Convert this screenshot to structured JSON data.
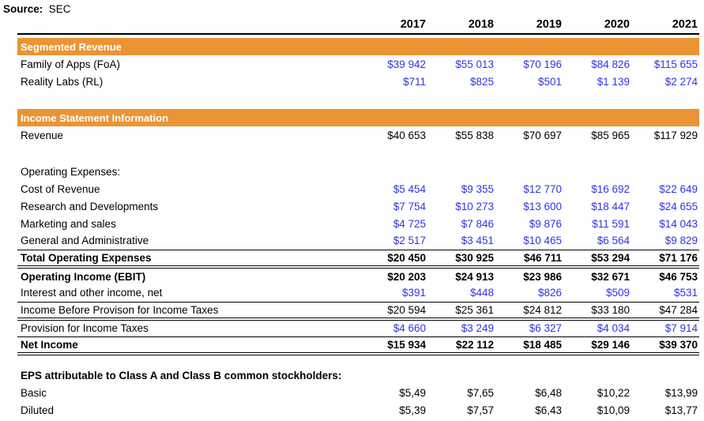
{
  "source": {
    "label": "Source:",
    "value": "SEC"
  },
  "colors": {
    "accent_orange": "#EB9435",
    "number_blue": "#3232E8",
    "section_text": "#FFFFFF",
    "text": "#000000"
  },
  "table": {
    "years": [
      "2017",
      "2018",
      "2019",
      "2020",
      "2021"
    ],
    "rows": [
      {
        "type": "section",
        "label": "Segmented Revenue"
      },
      {
        "type": "data",
        "style": "blue",
        "label": "Family of Apps (FoA)",
        "values": [
          "$39 942",
          "$55 013",
          "$70 196",
          "$84 826",
          "$115 655"
        ]
      },
      {
        "type": "data",
        "style": "blue",
        "label": "Reality Labs (RL)",
        "values": [
          "$711",
          "$825",
          "$501",
          "$1 139",
          "$2 274"
        ]
      },
      {
        "type": "blank"
      },
      {
        "type": "section",
        "label": "Income Statement Information"
      },
      {
        "type": "data",
        "style": "black",
        "label": "Revenue",
        "values": [
          "$40 653",
          "$55 838",
          "$70 697",
          "$85 965",
          "$117 929"
        ]
      },
      {
        "type": "blank"
      },
      {
        "type": "label",
        "style": "plain",
        "label": "Operating Expenses:"
      },
      {
        "type": "data",
        "style": "blue",
        "label": "Cost of Revenue",
        "values": [
          "$5 454",
          "$9 355",
          "$12 770",
          "$16 692",
          "$22 649"
        ]
      },
      {
        "type": "data",
        "style": "blue",
        "label": "Research and Developments",
        "values": [
          "$7 754",
          "$10 273",
          "$13 600",
          "$18 447",
          "$24 655"
        ]
      },
      {
        "type": "data",
        "style": "blue",
        "label": "Marketing and sales",
        "values": [
          "$4 725",
          "$7 846",
          "$9 876",
          "$11 591",
          "$14 043"
        ]
      },
      {
        "type": "data",
        "style": "blue",
        "label": "General and Administrative",
        "values": [
          "$2 517",
          "$3 451",
          "$10 465",
          "$6 564",
          "$9 829"
        ],
        "border_bottom": "thin"
      },
      {
        "type": "data",
        "style": "bold",
        "label": "Total Operating Expenses",
        "values": [
          "$20 450",
          "$30 925",
          "$46 711",
          "$53 294",
          "$71 176"
        ],
        "border_bottom": "double"
      },
      {
        "type": "data",
        "style": "bold",
        "label": "Operating Income (EBIT)",
        "values": [
          "$20 203",
          "$24 913",
          "$23 986",
          "$32 671",
          "$46 753"
        ]
      },
      {
        "type": "data",
        "style": "blue",
        "label": "Interest and other income, net",
        "values": [
          "$391",
          "$448",
          "$826",
          "$509",
          "$531"
        ],
        "border_bottom": "thin"
      },
      {
        "type": "data",
        "style": "black",
        "label": "Income Before Provison for Income Taxes",
        "values": [
          "$20 594",
          "$25 361",
          "$24 812",
          "$33 180",
          "$47 284"
        ],
        "border_bottom": "double"
      },
      {
        "type": "data",
        "style": "blue",
        "label": "Provision for Income Taxes",
        "values": [
          "$4 660",
          "$3 249",
          "$6 327",
          "$4 034",
          "$7 914"
        ],
        "border_bottom": "thin"
      },
      {
        "type": "data",
        "style": "bold",
        "label": "Net Income",
        "values": [
          "$15 934",
          "$22 112",
          "$18 485",
          "$29 146",
          "$39 370"
        ],
        "border_bottom": "double"
      },
      {
        "type": "blank"
      },
      {
        "type": "label",
        "style": "bold",
        "label": "EPS attributable to Class A and Class B common stockholders:"
      },
      {
        "type": "data",
        "style": "black",
        "label": "Basic",
        "values": [
          "$5,49",
          "$7,65",
          "$6,48",
          "$10,22",
          "$13,99"
        ]
      },
      {
        "type": "data",
        "style": "black",
        "label": "Diluted",
        "values": [
          "$5,39",
          "$7,57",
          "$6,43",
          "$10,09",
          "$13,77"
        ]
      }
    ]
  }
}
